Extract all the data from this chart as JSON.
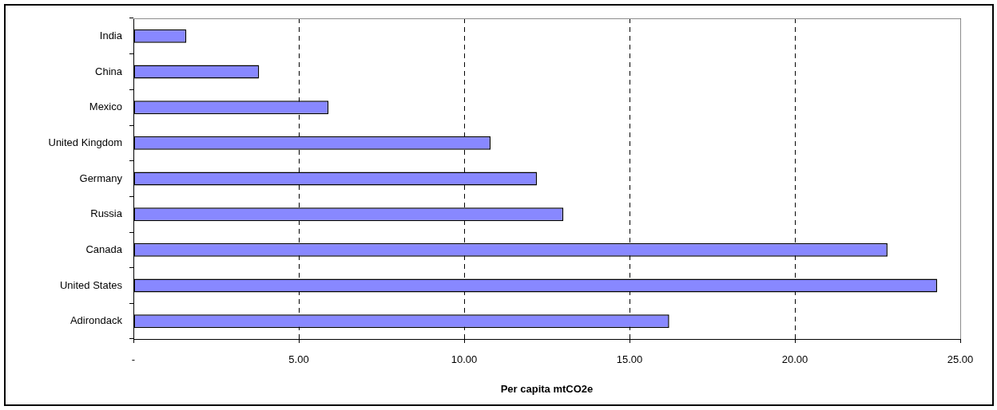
{
  "chart_data": {
    "type": "bar",
    "orientation": "horizontal",
    "categories": [
      "India",
      "China",
      "Mexico",
      "United Kingdom",
      "Germany",
      "Russia",
      "Canada",
      "United States",
      "Adirondack"
    ],
    "values": [
      1.6,
      3.8,
      5.9,
      10.8,
      12.2,
      13.0,
      22.8,
      24.3,
      16.2
    ],
    "color": "#8888ff",
    "xlabel": "Per capita mtCO2e",
    "xlim": [
      0,
      25
    ],
    "xticks": [
      {
        "value": 0,
        "label": "-"
      },
      {
        "value": 5,
        "label": "5.00"
      },
      {
        "value": 10,
        "label": "10.00"
      },
      {
        "value": 15,
        "label": "15.00"
      },
      {
        "value": 20,
        "label": "20.00"
      },
      {
        "value": 25,
        "label": "25.00"
      }
    ],
    "grid": "x"
  }
}
